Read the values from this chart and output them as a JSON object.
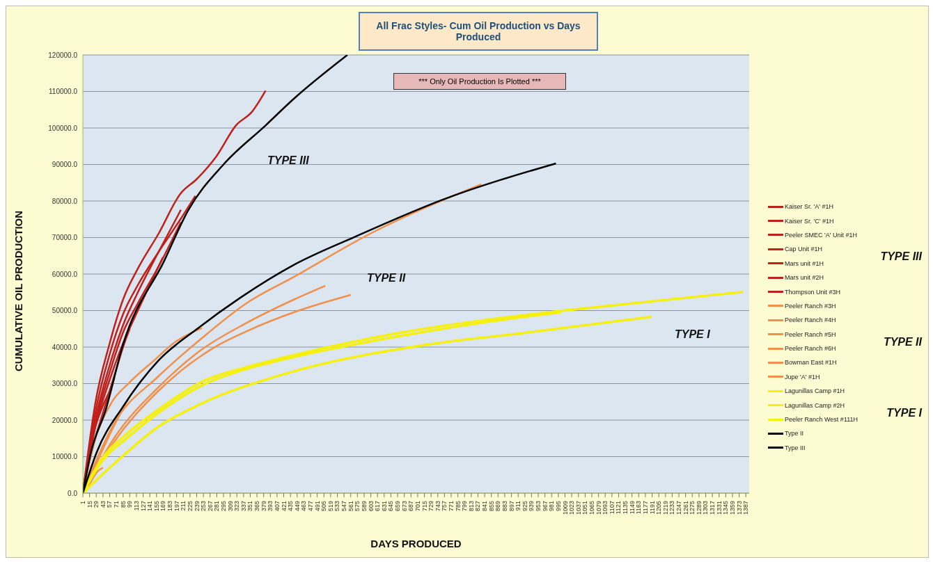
{
  "chart_data": {
    "type": "line",
    "title": "All Frac Styles-  Cum Oil Production vs Days Produced",
    "xlabel": "DAYS PRODUCED",
    "ylabel": "CUMULATIVE OIL PRODUCTION",
    "xlim": [
      1,
      1394
    ],
    "xticks": [
      1,
      15,
      29,
      43,
      57,
      71,
      85,
      99,
      113,
      127,
      141,
      155,
      169,
      183,
      197,
      211,
      225,
      239,
      253,
      267,
      281,
      295,
      309,
      323,
      337,
      351,
      365,
      379,
      393,
      407,
      421,
      435,
      449,
      463,
      477,
      491,
      505,
      519,
      533,
      547,
      561,
      575,
      589,
      603,
      617,
      631,
      645,
      659,
      673,
      687,
      701,
      715,
      729,
      743,
      757,
      771,
      785,
      799,
      813,
      827,
      841,
      855,
      869,
      883,
      897,
      911,
      925,
      939,
      953,
      967,
      981,
      995,
      1009,
      1023,
      1037,
      1051,
      1065,
      1079,
      1093,
      1107,
      1121,
      1135,
      1149,
      1163,
      1177,
      1191,
      1205,
      1219,
      1233,
      1247,
      1261,
      1275,
      1289,
      1303,
      1317,
      1331,
      1345,
      1359,
      1373,
      1387
    ],
    "ylim": [
      0,
      120000
    ],
    "yticks": [
      {
        "value": 0,
        "label": "0.0"
      },
      {
        "value": 10000,
        "label": "10000.0"
      },
      {
        "value": 20000,
        "label": "20000.0"
      },
      {
        "value": 30000,
        "label": "30000.0"
      },
      {
        "value": 40000,
        "label": "40000.0"
      },
      {
        "value": 50000,
        "label": "50000.0"
      },
      {
        "value": 60000,
        "label": "60000.0"
      },
      {
        "value": 70000,
        "label": "70000.0"
      },
      {
        "value": 80000,
        "label": "80000.0"
      },
      {
        "value": 90000,
        "label": "90000.0"
      },
      {
        "value": 100000,
        "label": "100000.0"
      },
      {
        "value": 110000,
        "label": "110000.0"
      },
      {
        "value": 120000,
        "label": "120000.0"
      }
    ],
    "grid": "y",
    "legend": "right",
    "marker": "none",
    "line_style": "solid",
    "annotations": [
      "*** Only Oil Production Is Plotted ***",
      "TYPE III",
      "TYPE II",
      "TYPE I",
      "TYPE III",
      "TYPE II",
      "TYPE I"
    ],
    "series": [
      {
        "name": "Kaiser Sr. 'A' #1H",
        "color": "#c0201a",
        "x": [
          1,
          27,
          57,
          85,
          116,
          159,
          205,
          239,
          281,
          321,
          355,
          383
        ],
        "values": [
          0,
          24600,
          41000,
          53000,
          61500,
          71000,
          82000,
          86000,
          92400,
          100700,
          104500,
          110200
        ]
      },
      {
        "name": "Kaiser Sr. 'C' #1H",
        "color": "#c0201a",
        "x": [
          1,
          27,
          57,
          85,
          116,
          159,
          205,
          236
        ],
        "values": [
          0,
          22000,
          38000,
          49000,
          57000,
          66000,
          75000,
          81400
        ]
      },
      {
        "name": "Peeler SMEC 'A' Unit #1H",
        "color": "#c0201a",
        "x": [
          1,
          27,
          57,
          85,
          116,
          159,
          206
        ],
        "values": [
          0,
          20000,
          35000,
          46000,
          55000,
          66000,
          77600
        ]
      },
      {
        "name": "Cap Unit #1H",
        "color": "#c0201a",
        "x": [
          1,
          27,
          57,
          85,
          116,
          159,
          206
        ],
        "values": [
          0,
          19000,
          33000,
          44000,
          52000,
          62000,
          74200
        ]
      },
      {
        "name": "Mars unit #1H",
        "color": "#c0201a",
        "x": [
          1,
          27,
          57,
          85,
          116,
          168
        ],
        "values": [
          0,
          18000,
          31000,
          41000,
          50000,
          64500
        ]
      },
      {
        "name": "Mars unit #2H",
        "color": "#c0201a",
        "x": [
          1,
          15,
          29,
          43,
          57,
          67
        ],
        "values": [
          0,
          12000,
          19000,
          24000,
          28000,
          31600
        ]
      },
      {
        "name": "Thompson Unit #3H",
        "color": "#c0201a",
        "x": [
          1,
          15,
          29,
          43,
          57,
          71,
          85,
          99
        ],
        "values": [
          0,
          9000,
          16000,
          22000,
          28000,
          34000,
          40000,
          45000
        ]
      },
      {
        "name": "Peeler Ranch #3H",
        "color": "#f0904a",
        "x": [
          1,
          66,
          159,
          244,
          343,
          442,
          601,
          834
        ],
        "values": [
          0,
          19000,
          32000,
          41800,
          52000,
          59200,
          71000,
          84600
        ]
      },
      {
        "name": "Peeler Ranch #4H",
        "color": "#f0904a",
        "x": [
          1,
          66,
          159,
          244,
          343,
          442,
          508
        ],
        "values": [
          0,
          15000,
          29000,
          38800,
          46600,
          53000,
          56800
        ]
      },
      {
        "name": "Peeler Ranch #5H",
        "color": "#f0904a",
        "x": [
          1,
          66,
          159,
          281,
          343,
          448,
          561
        ],
        "values": [
          0,
          14000,
          28000,
          40300,
          44300,
          49800,
          54300
        ]
      },
      {
        "name": "Peeler Ranch #6H",
        "color": "#f0904a",
        "x": [
          1,
          24,
          60,
          97,
          153,
          190,
          250
        ],
        "values": [
          0,
          13400,
          24600,
          30100,
          36700,
          41000,
          45200
        ]
      },
      {
        "name": "Bowman East #1H",
        "color": "#f0904a",
        "x": [
          1,
          29,
          57,
          97
        ],
        "values": [
          0,
          8000,
          16000,
          26100
        ]
      },
      {
        "name": "Jupe 'A' #1H",
        "color": "#f0904a",
        "x": [
          1,
          15,
          30,
          43
        ],
        "values": [
          0,
          2500,
          5700,
          7000
        ]
      },
      {
        "name": "Lagunillas Camp #1H",
        "color": "#f5f010",
        "x": [
          1,
          37,
          97,
          159,
          250,
          343,
          417,
          663,
          907,
          1006,
          1381
        ],
        "values": [
          0,
          8700,
          16700,
          22900,
          30500,
          34500,
          37000,
          43900,
          48500,
          50000,
          55100
        ]
      },
      {
        "name": "Lagunillas Camp #2H",
        "color": "#f5f010",
        "x": [
          1,
          37,
          97,
          159,
          250,
          343,
          417,
          663,
          907,
          1000
        ],
        "values": [
          0,
          8000,
          15500,
          22000,
          29500,
          34000,
          36500,
          43000,
          48000,
          49500
        ]
      },
      {
        "name": "Peeler Ranch West #111H",
        "color": "#f5f010",
        "x": [
          1,
          66,
          159,
          250,
          417,
          723,
          926,
          1190
        ],
        "values": [
          0,
          8000,
          18200,
          24600,
          32400,
          40700,
          43900,
          48300
        ]
      },
      {
        "name": "Type II",
        "color": "#000000",
        "x": [
          1,
          30,
          85,
          159,
          244,
          330,
          442,
          570,
          754,
          990
        ],
        "values": [
          0,
          11200,
          23700,
          36300,
          45400,
          53500,
          62500,
          70200,
          80400,
          90300
        ]
      },
      {
        "name": "Type III",
        "color": "#000000",
        "x": [
          1,
          18,
          49,
          85,
          171,
          221,
          295,
          383,
          442,
          554
        ],
        "values": [
          0,
          11200,
          22900,
          40700,
          63600,
          77400,
          90000,
          100700,
          108000,
          120000
        ]
      }
    ]
  }
}
